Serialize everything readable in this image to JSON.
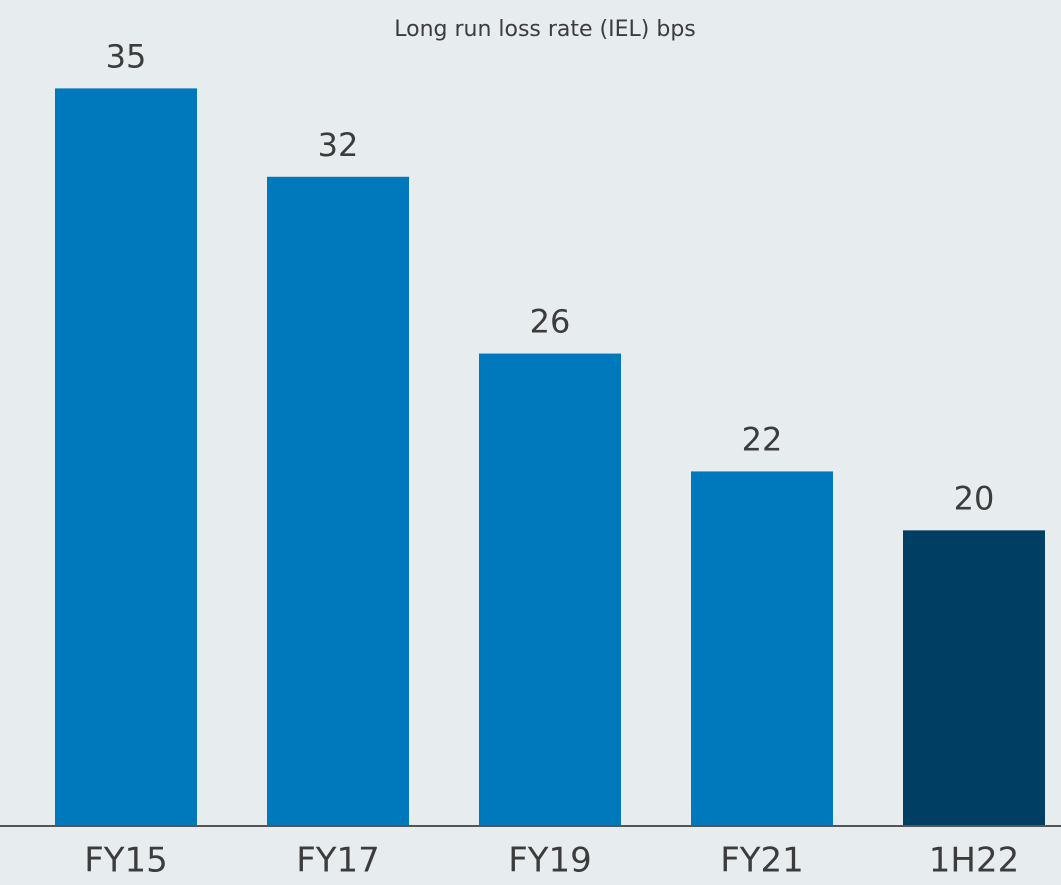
{
  "chart_data": {
    "type": "bar",
    "title": "Long run loss rate (IEL) bps",
    "categories": [
      "FY15",
      "FY17",
      "FY19",
      "FY21",
      "1H22"
    ],
    "values": [
      35,
      32,
      26,
      22,
      20
    ],
    "colors": [
      "#0079bc",
      "#0079bc",
      "#0079bc",
      "#0079bc",
      "#003f63"
    ],
    "ylim": [
      10,
      38
    ]
  }
}
